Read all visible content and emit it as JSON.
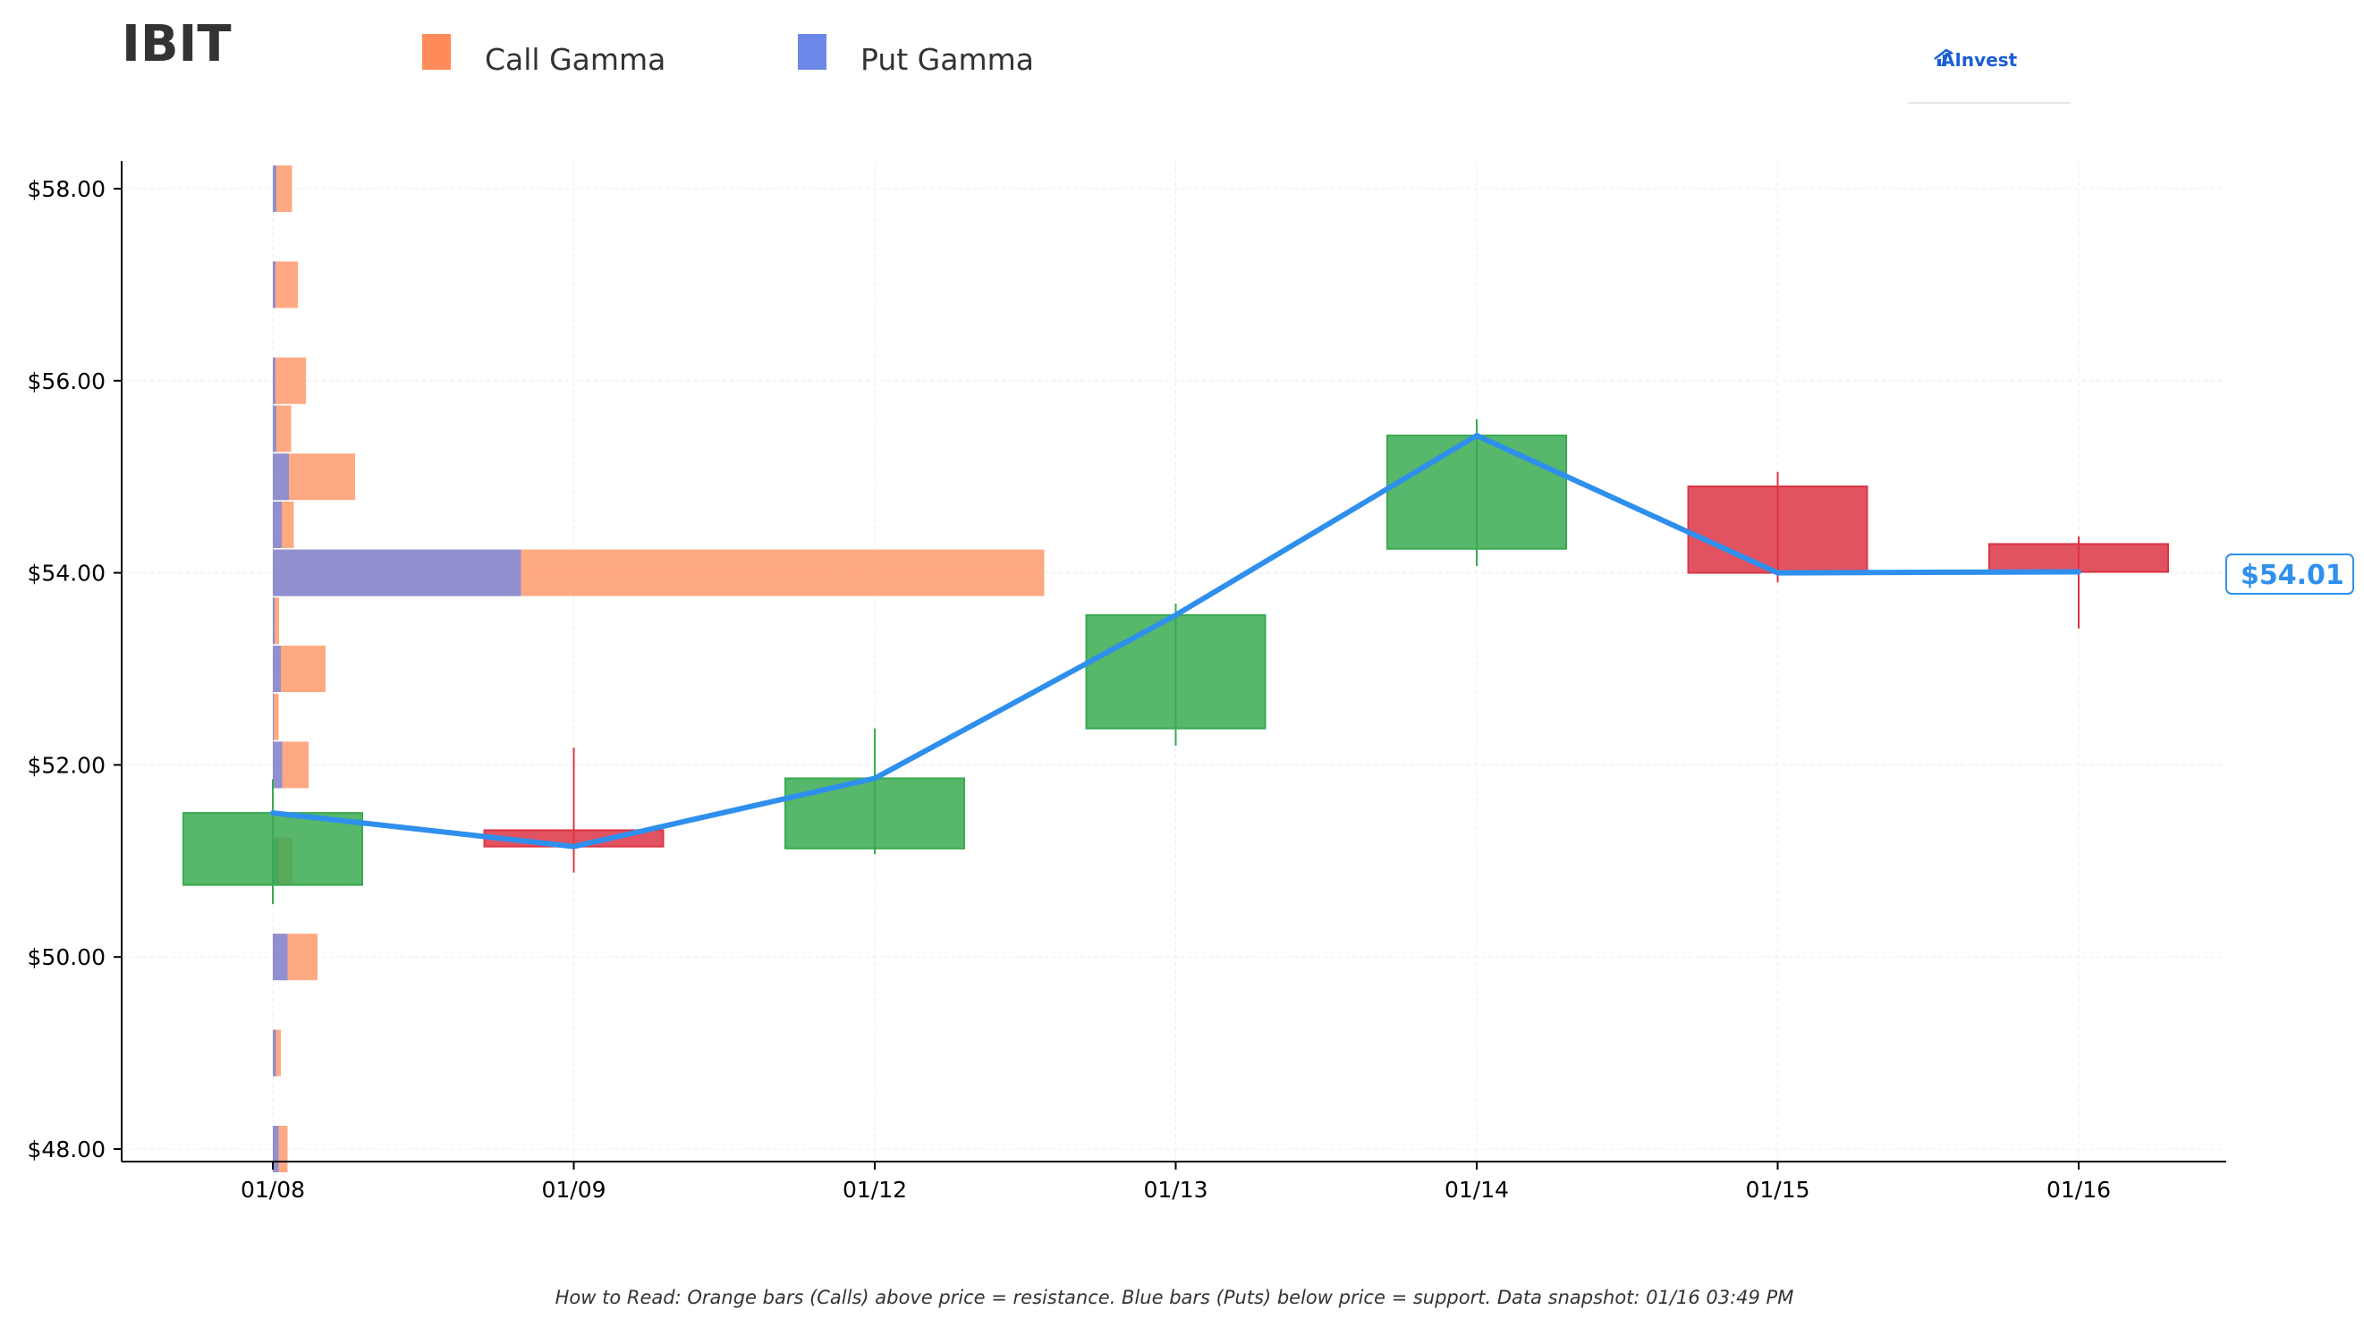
{
  "title": "IBIT",
  "legend": [
    {
      "label": "Call Gamma",
      "color": "#ff8c5a"
    },
    {
      "label": "Put Gamma",
      "color": "#6b87e8"
    }
  ],
  "logo": {
    "text": "AInvest"
  },
  "footnote": "How to Read: Orange bars (Calls) above price = resistance. Blue bars (Puts) below price = support. Data snapshot: 01/16 03:49 PM",
  "current_price_label": "$54.01",
  "colors": {
    "up": "#3aaa50",
    "down": "#dc3545",
    "line": "#2f8fed",
    "call": "#ff8c5a",
    "put": "#6b87e8"
  },
  "chart_data": {
    "type": "candlestick",
    "x": [
      "01/08",
      "01/09",
      "01/12",
      "01/13",
      "01/14",
      "01/15",
      "01/16"
    ],
    "ylim": [
      47.9,
      58.3
    ],
    "yticks": [
      {
        "value": 48,
        "label": "$48.00"
      },
      {
        "value": 50,
        "label": "$50.00"
      },
      {
        "value": 52,
        "label": "$52.00"
      },
      {
        "value": 54,
        "label": "$54.00"
      },
      {
        "value": 56,
        "label": "$56.00"
      },
      {
        "value": 58,
        "label": "$58.00"
      }
    ],
    "candles": [
      {
        "date": "01/08",
        "open": 50.75,
        "high": 51.85,
        "low": 50.55,
        "close": 51.5
      },
      {
        "date": "01/09",
        "open": 51.32,
        "high": 52.18,
        "low": 50.88,
        "close": 51.15
      },
      {
        "date": "01/12",
        "open": 51.13,
        "high": 52.38,
        "low": 51.07,
        "close": 51.86
      },
      {
        "date": "01/13",
        "open": 52.38,
        "high": 53.68,
        "low": 52.2,
        "close": 53.56
      },
      {
        "date": "01/14",
        "open": 54.25,
        "high": 55.6,
        "low": 54.07,
        "close": 55.43
      },
      {
        "date": "01/15",
        "open": 54.9,
        "high": 55.05,
        "low": 53.9,
        "close": 54.0
      },
      {
        "date": "01/16",
        "open": 54.3,
        "high": 54.38,
        "low": 53.42,
        "close": 54.01
      }
    ],
    "price_line": [
      51.5,
      51.15,
      51.86,
      53.56,
      55.43,
      54.0,
      54.01
    ],
    "gamma_profile": {
      "x_scale_note": "relative exposure",
      "levels": [
        {
          "strike": 58.0,
          "put": 0.08,
          "call": 0.35
        },
        {
          "strike": 57.0,
          "put": 0.06,
          "call": 0.5
        },
        {
          "strike": 56.0,
          "put": 0.06,
          "call": 0.68
        },
        {
          "strike": 55.5,
          "put": 0.08,
          "call": 0.33
        },
        {
          "strike": 55.0,
          "put": 0.36,
          "call": 1.48
        },
        {
          "strike": 54.5,
          "put": 0.2,
          "call": 0.27
        },
        {
          "strike": 54.0,
          "put": 5.55,
          "call": 11.7
        },
        {
          "strike": 53.5,
          "put": 0.04,
          "call": 0.1
        },
        {
          "strike": 53.0,
          "put": 0.18,
          "call": 1.0
        },
        {
          "strike": 52.5,
          "put": 0.02,
          "call": 0.11
        },
        {
          "strike": 52.0,
          "put": 0.21,
          "call": 0.59
        },
        {
          "strike": 51.0,
          "put": 0.12,
          "call": 0.32
        },
        {
          "strike": 50.0,
          "put": 0.33,
          "call": 0.67
        },
        {
          "strike": 49.0,
          "put": 0.07,
          "call": 0.11
        },
        {
          "strike": 48.0,
          "put": 0.13,
          "call": 0.2
        }
      ]
    }
  }
}
